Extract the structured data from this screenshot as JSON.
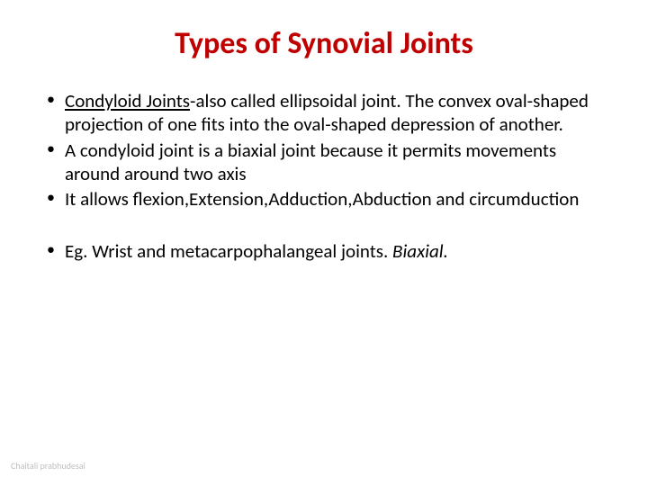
{
  "title": {
    "text": "Types of Synovial Joints",
    "color": "#c00000",
    "fontsize": 34
  },
  "bullets": [
    {
      "leadUnderline": "Condyloid Joints",
      "rest": "-also called ellipsoidal joint.  The convex oval-shaped projection of one fits into the oval-shaped depression of another."
    },
    {
      "rest": "A condyloid joint is a biaxial joint because it permits movements around around two axis"
    },
    {
      "rest": "It allows flexion,Extension,Adduction,Abduction  and circumduction"
    }
  ],
  "example": {
    "prefix": " Eg. Wrist and metacarpophalangeal joints. ",
    "italic": "Biaxial."
  },
  "body": {
    "color": "#000000",
    "fontsize": 21,
    "lineheight": 1.25
  },
  "footer": {
    "text": "Chaitali prabhudesai",
    "color": "#bfbfbf",
    "fontsize": 10
  }
}
